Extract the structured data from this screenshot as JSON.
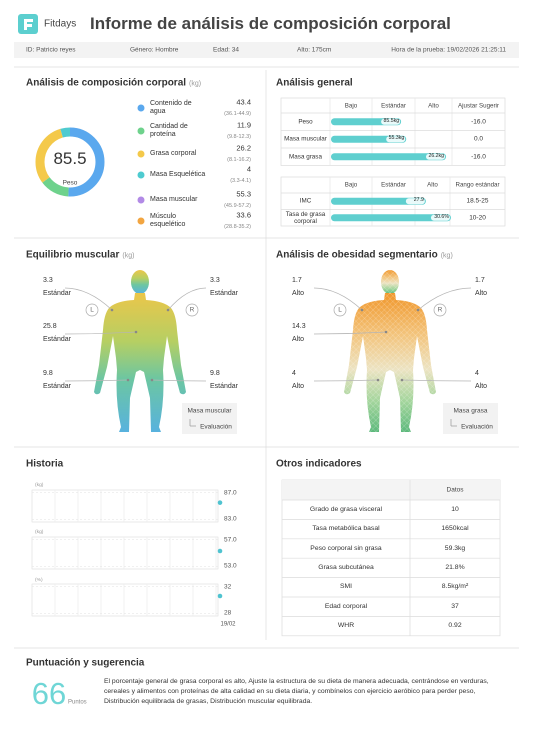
{
  "header": {
    "brand": "Fitdays",
    "title": "Informe de análisis de composición corporal"
  },
  "info": [
    "ID: Patricio reyes",
    "Género: Hombre",
    "Edad: 34",
    "Alto: 175cm",
    "Hora de la prueba: 19/02/2026 21:25:11"
  ],
  "composition": {
    "title": "Análisis de composición corporal",
    "unit": "(kg)",
    "total": 85.5,
    "total_label": "Peso",
    "items": [
      {
        "name": "Contenido de agua",
        "value": 43.4,
        "range": "(36.1-44.9)",
        "color": "#5aa8ee"
      },
      {
        "name": "Cantidad de proteína",
        "value": 11.9,
        "range": "(9.8-12.3)",
        "color": "#6ed28c"
      },
      {
        "name": "Grasa corporal",
        "value": 26.2,
        "range": "(8.1-16.2)",
        "color": "#f4c94a"
      },
      {
        "name": "Masa Esquelética",
        "value": 4.0,
        "range": "(3.3-4.1)",
        "color": "#4ecbd0"
      },
      {
        "name": "Masa muscular",
        "value": 55.3,
        "range": "(45.9-57.2)",
        "color": "#b28ae6"
      },
      {
        "name": "Músculo esquelético",
        "value": 33.6,
        "range": "(28.8-35.2)",
        "color": "#f2a541"
      }
    ]
  },
  "general": {
    "title": "Análisis general",
    "bar_color": "#5fcfcf",
    "table1": {
      "columns": [
        "Bajo",
        "Estándar",
        "Alto",
        "Ajustar Sugerir"
      ],
      "rows": [
        {
          "name": "Peso",
          "value": 85.5,
          "value_label": "85.5kg",
          "suggestion": "-16.0"
        },
        {
          "name": "Masa muscular",
          "value": 55.3,
          "value_label": "55.3kg",
          "suggestion": "0.0"
        },
        {
          "name": "Masa grasa",
          "value": 26.2,
          "value_label": "26.2kg",
          "suggestion": "-16.0"
        }
      ]
    },
    "table2": {
      "columns": [
        "Bajo",
        "Estándar",
        "Alto",
        "Rango estándar"
      ],
      "rows": [
        {
          "name": "IMC",
          "value": 27.9,
          "range": "18.5-25"
        },
        {
          "name": "Tasa de grasa corporal",
          "value": 30.6,
          "value_label": "30.6%",
          "range": "10-20"
        }
      ]
    }
  },
  "muscle_balance": {
    "title": "Equilibrio muscular",
    "unit": "(kg)",
    "left": "L",
    "right": "R",
    "segments": [
      {
        "value": 3.3,
        "status": "Estándar"
      },
      {
        "value": 3.3,
        "status": "Estándar"
      },
      {
        "value": 25.8,
        "status": "Estándar"
      },
      {
        "value": 9.8,
        "status": "Estándar"
      },
      {
        "value": 9.8,
        "status": "Estándar"
      }
    ],
    "legend": [
      "Masa muscular",
      "Evaluación"
    ]
  },
  "segmental_fat": {
    "title": "Análisis de obesidad segmentario",
    "unit": "(kg)",
    "left": "L",
    "right": "R",
    "segments": [
      {
        "value": 1.7,
        "status": "Alto"
      },
      {
        "value": 1.7,
        "status": "Alto"
      },
      {
        "value": 14.3,
        "status": "Alto"
      },
      {
        "value": 4.0,
        "status": "Alto"
      },
      {
        "value": 4.0,
        "status": "Alto"
      }
    ],
    "legend": [
      "Masa grasa",
      "Evaluación"
    ]
  },
  "history": {
    "title": "Historia",
    "x": [
      "19/02"
    ],
    "color": "#4fc3d0",
    "charts": [
      {
        "name": "Peso",
        "unit": "(kg)",
        "values": [
          85.5
        ],
        "ylim": [
          82.6,
          87.4
        ],
        "yticks": [
          {
            "value": 87,
            "label": "87.0"
          },
          {
            "value": 83,
            "label": "83.0"
          }
        ]
      },
      {
        "name": "Masa muscular",
        "unit": "(kg)",
        "values": [
          55.3
        ],
        "ylim": [
          52.6,
          57.4
        ],
        "yticks": [
          {
            "value": 57,
            "label": "57.0"
          },
          {
            "value": 53,
            "label": "53.0"
          }
        ]
      },
      {
        "name": "Tasa de grasa corporal",
        "unit": "(%)",
        "values": [
          30.6
        ],
        "ylim": [
          27.6,
          32.4
        ],
        "yticks": [
          32,
          28
        ]
      }
    ]
  },
  "other": {
    "title": "Otros indicadores",
    "header": "Datos",
    "rows": [
      [
        "Grado de grasa visceral",
        "10"
      ],
      [
        "Tasa metabólica basal",
        "1650kcal"
      ],
      [
        "Peso corporal sin grasa",
        "59.3kg"
      ],
      [
        "Grasa subcutánea",
        "21.8%"
      ],
      [
        "SMI",
        "8.5kg/m²"
      ],
      [
        "Edad corporal",
        "37"
      ],
      [
        "WHR",
        "0.92"
      ]
    ]
  },
  "score": {
    "title": "Puntuación y sugerencia",
    "value": 66,
    "unit": "Puntos",
    "text": "El porcentaje general de grasa corporal es alto, Ajuste la estructura de su dieta de manera adecuada, centrándose en verduras, cereales y alimentos con proteínas de alta calidad en su dieta diaria, y combínelos con ejercicio aeróbico para perder peso, Distribución equilibrada de grasas, Distribución muscular equilibrada."
  }
}
